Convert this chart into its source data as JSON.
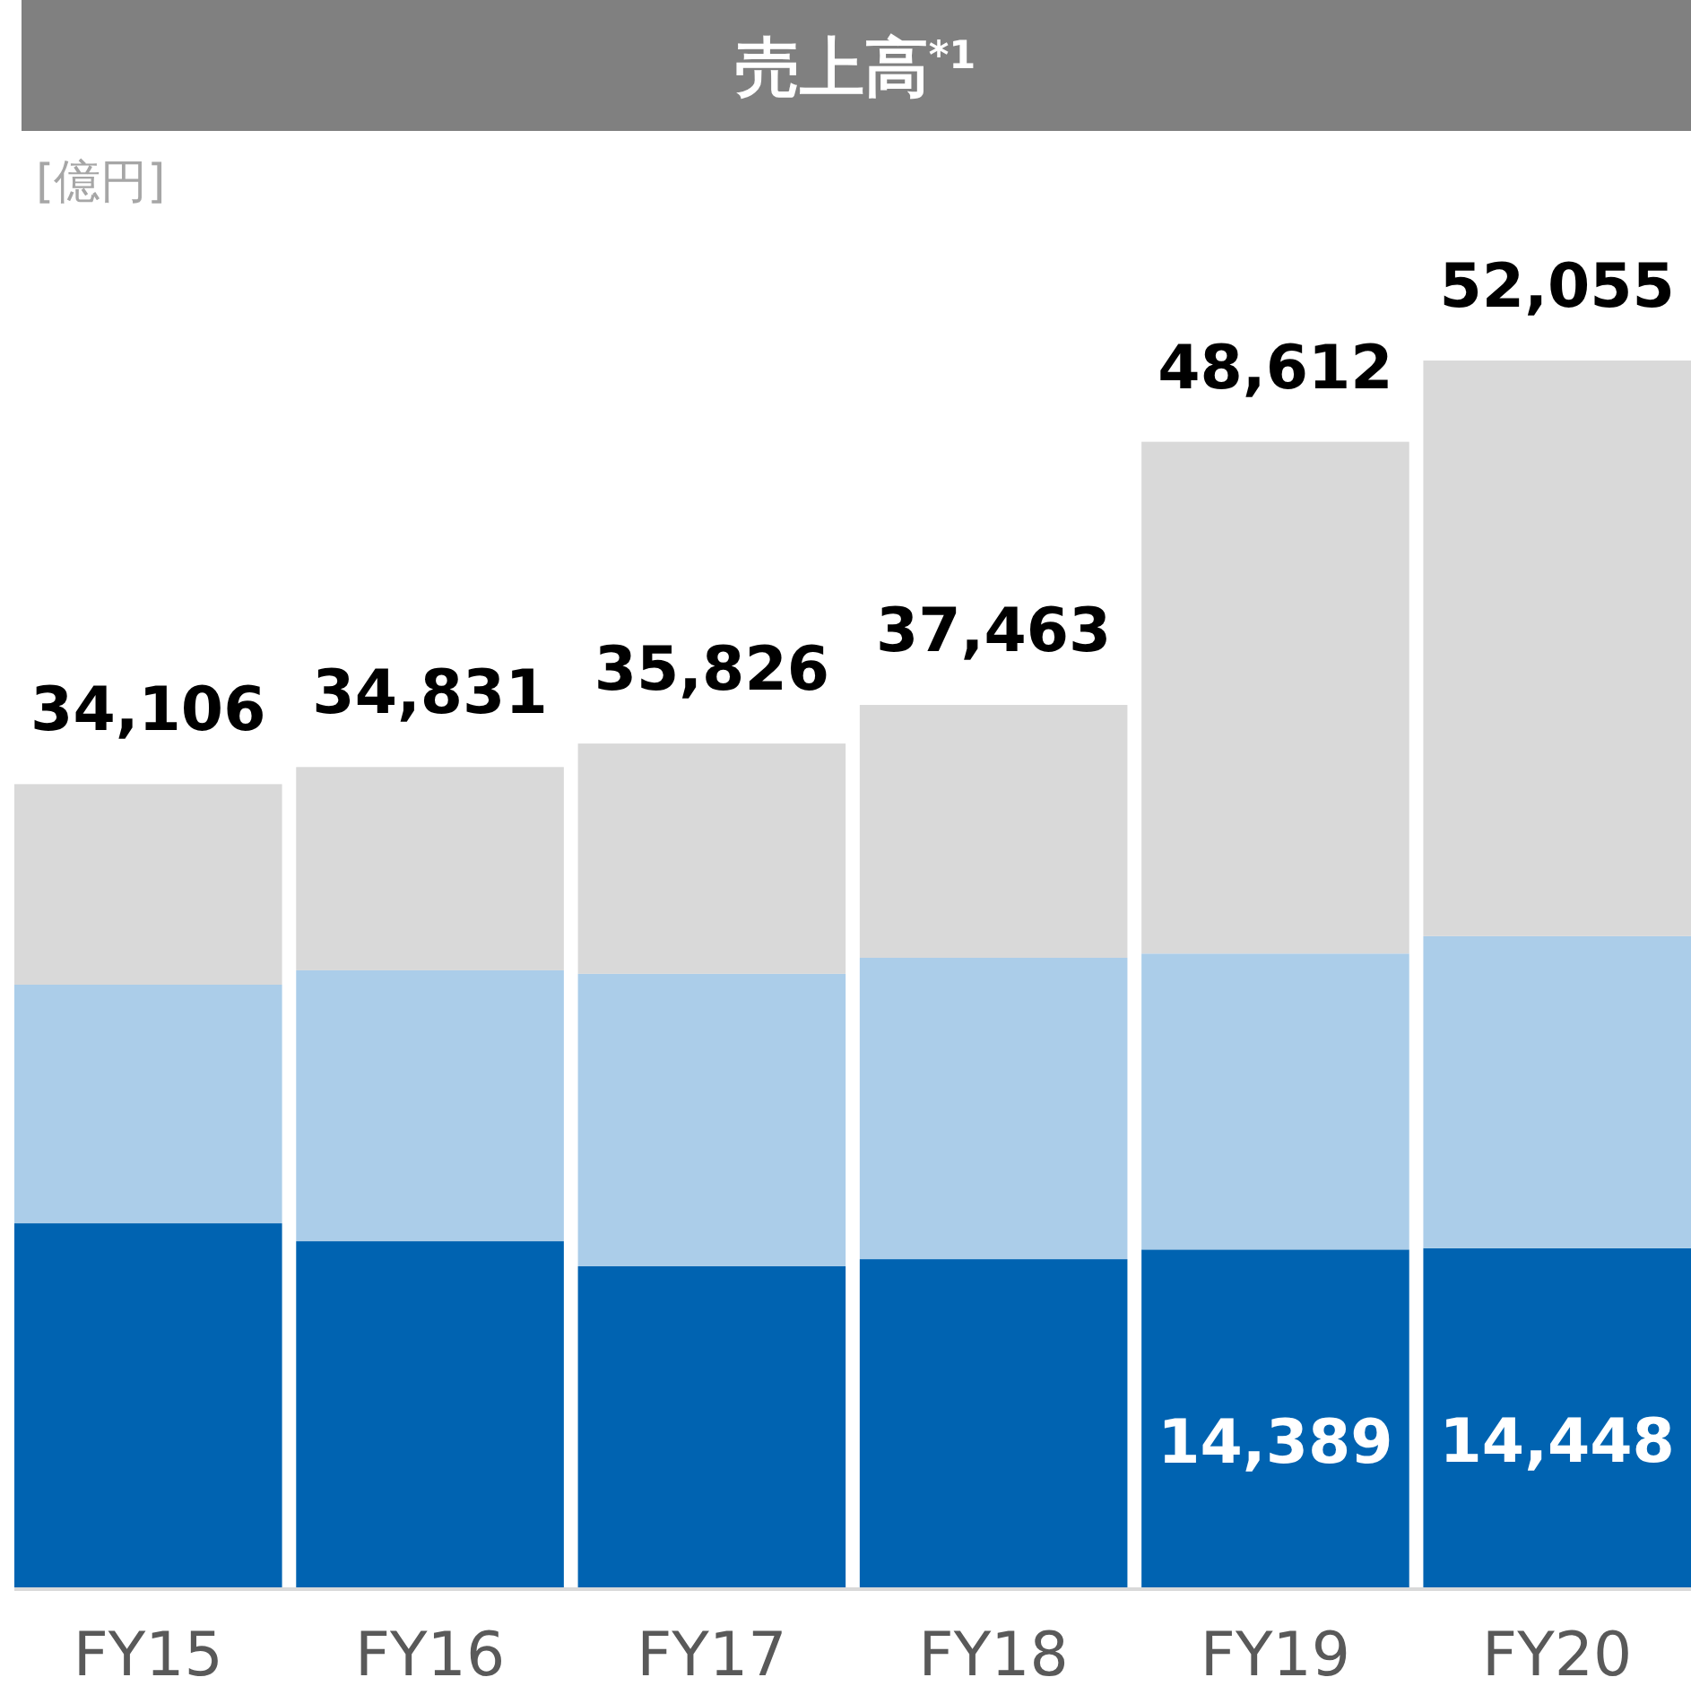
{
  "chart_data": {
    "type": "bar",
    "title": "売上高$^{*1}$",
    "ylabel": "[億円]",
    "stacked": true,
    "categories": [
      "FY15",
      "FY16",
      "FY17",
      "FY18",
      "FY19",
      "FY20"
    ],
    "series": [
      {
        "color": "#0063b1",
        "values": [
          15500,
          14740,
          13680,
          13980,
          14389,
          14448
        ],
        "value_labels": [
          null,
          null,
          null,
          null,
          "14,389",
          "14,448"
        ]
      },
      {
        "color": "#abcde9",
        "values": [
          10110,
          11480,
          12390,
          12770,
          12540,
          13220
        ]
      },
      {
        "color": "#d9d9d9",
        "values": [
          8496,
          8611,
          9756,
          10713,
          21683,
          24387
        ]
      }
    ],
    "totals": [
      "34,106",
      "34,831",
      "35,826",
      "37,463",
      "48,612",
      "52,055"
    ],
    "tick_labels": "x"
  }
}
